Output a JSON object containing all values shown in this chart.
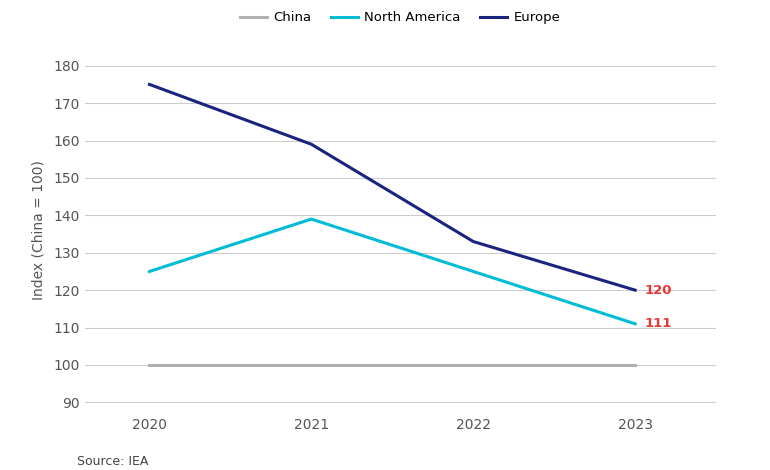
{
  "years": [
    2020,
    2021,
    2022,
    2023
  ],
  "china": [
    100,
    100,
    100,
    100
  ],
  "north_america": [
    125,
    139,
    125,
    111
  ],
  "europe": [
    175,
    159,
    133,
    120
  ],
  "china_color": "#b0b0b0",
  "north_america_color": "#00bcd4",
  "europe_color": "#1a237e",
  "annotation_color": "#e53935",
  "europe_label_value": "120",
  "north_america_label_value": "111",
  "ylabel": "Index (China = 100)",
  "ylim": [
    87,
    185
  ],
  "yticks": [
    90,
    100,
    110,
    120,
    130,
    140,
    150,
    160,
    170,
    180
  ],
  "source_text": "Source: IEA",
  "legend_china": "China",
  "legend_na": "North America",
  "legend_europe": "Europe",
  "bg_color": "#ffffff",
  "grid_color": "#cccccc",
  "line_width": 2.2
}
